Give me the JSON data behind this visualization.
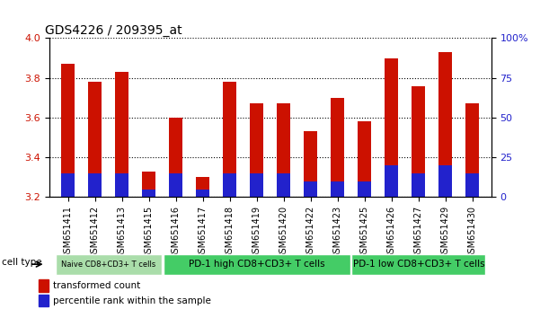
{
  "title": "GDS4226 / 209395_at",
  "samples": [
    "GSM651411",
    "GSM651412",
    "GSM651413",
    "GSM651415",
    "GSM651416",
    "GSM651417",
    "GSM651418",
    "GSM651419",
    "GSM651420",
    "GSM651422",
    "GSM651423",
    "GSM651425",
    "GSM651426",
    "GSM651427",
    "GSM651429",
    "GSM651430"
  ],
  "transformed_count": [
    3.87,
    3.78,
    3.83,
    3.33,
    3.6,
    3.3,
    3.78,
    3.67,
    3.67,
    3.53,
    3.7,
    3.58,
    3.9,
    3.76,
    3.93,
    3.67
  ],
  "percentile_rank": [
    15,
    15,
    15,
    5,
    15,
    5,
    15,
    15,
    15,
    10,
    10,
    10,
    20,
    15,
    20,
    15
  ],
  "bar_color": "#cc1100",
  "blue_color": "#2222cc",
  "ylim_left": [
    3.2,
    4.0
  ],
  "ylim_right": [
    0,
    100
  ],
  "yticks_left": [
    3.2,
    3.4,
    3.6,
    3.8,
    4.0
  ],
  "yticks_right": [
    0,
    25,
    50,
    75,
    100
  ],
  "grid_color": "black",
  "naive_color": "#aaddaa",
  "pd1_high_color": "#44cc66",
  "pd1_low_color": "#44cc66",
  "cell_type_label": "cell type",
  "legend_red": "transformed count",
  "legend_blue": "percentile rank within the sample",
  "bar_width": 0.5,
  "tick_label_size": 7,
  "title_fontsize": 10,
  "groups": [
    {
      "label": "Naive CD8+CD3+ T cells",
      "indices": [
        0,
        1,
        2,
        3
      ],
      "color": "#aaddaa",
      "fontsize": 6
    },
    {
      "label": "PD-1 high CD8+CD3+ T cells",
      "indices": [
        4,
        5,
        6,
        7,
        8,
        9,
        10
      ],
      "color": "#44cc66",
      "fontsize": 7.5
    },
    {
      "label": "PD-1 low CD8+CD3+ T cells",
      "indices": [
        11,
        12,
        13,
        14,
        15
      ],
      "color": "#44cc66",
      "fontsize": 7.5
    }
  ]
}
